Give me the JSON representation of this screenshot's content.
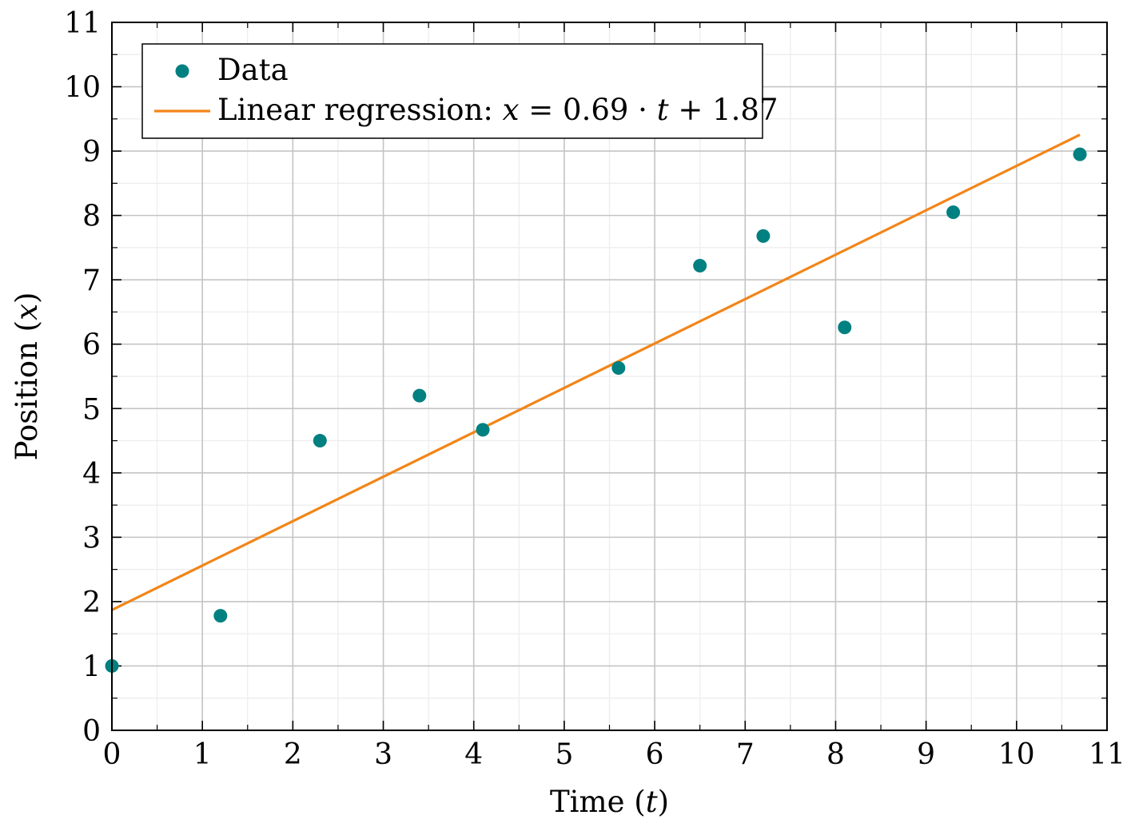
{
  "chart_data": {
    "type": "scatter",
    "title": "",
    "xlabel": "Time (t)",
    "ylabel": "Position (x)",
    "xlim": [
      0,
      11
    ],
    "ylim": [
      0,
      11
    ],
    "xticks": [
      "0",
      "1",
      "2",
      "3",
      "4",
      "5",
      "6",
      "7",
      "8",
      "9",
      "10",
      "11"
    ],
    "yticks": [
      "0",
      "1",
      "2",
      "3",
      "4",
      "5",
      "6",
      "7",
      "8",
      "9",
      "10",
      "11"
    ],
    "grid": true,
    "minor_grid": true,
    "legend_position": "top-left",
    "series": [
      {
        "name": "Data",
        "type": "scatter",
        "color": "#008080",
        "x": [
          0,
          1.2,
          2.3,
          3.4,
          4.1,
          5.6,
          6.5,
          7.2,
          8.1,
          9.3,
          10.7
        ],
        "y": [
          1.0,
          1.78,
          4.5,
          5.2,
          4.67,
          5.63,
          7.22,
          7.68,
          6.26,
          8.05,
          8.95
        ]
      },
      {
        "name": "Linear regression: x = 0.69 · t + 1.87",
        "type": "line",
        "color": "#f28518",
        "slope": 0.69,
        "intercept": 1.87,
        "x_range": [
          0,
          10.7
        ]
      }
    ]
  }
}
